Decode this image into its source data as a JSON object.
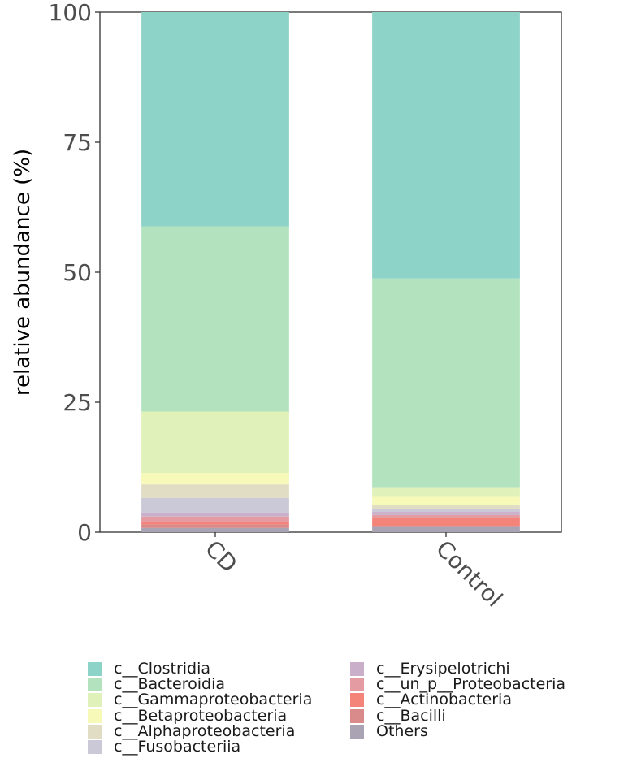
{
  "chart_data": {
    "type": "bar",
    "stacked": true,
    "categories": [
      "CD",
      "Control"
    ],
    "ylabel": "relative abundance (%)",
    "xlabel": "",
    "ylim": [
      0,
      100
    ],
    "yticks": [
      "0",
      "25",
      "50",
      "75",
      "100"
    ],
    "ytick_values": [
      0,
      25,
      50,
      75,
      100
    ],
    "legend_position": "bottom",
    "series": [
      {
        "name": "c__Clostridia",
        "color": "#8DD3C7",
        "values": [
          41.2,
          51.2
        ]
      },
      {
        "name": "c__Bacteroidia",
        "color": "#B3E2BE",
        "values": [
          35.6,
          40.3
        ]
      },
      {
        "name": "c__Gammaproteobacteria",
        "color": "#E0F2B9",
        "values": [
          11.8,
          1.7
        ]
      },
      {
        "name": "c__Betaproteobacteria",
        "color": "#F6F9B8",
        "values": [
          2.2,
          1.6
        ]
      },
      {
        "name": "c__Alphaproteobacteria",
        "color": "#E1DDC4",
        "values": [
          2.6,
          0.8
        ]
      },
      {
        "name": "c__Fusobacteriia",
        "color": "#CBC8D8",
        "values": [
          2.8,
          0.5
        ]
      },
      {
        "name": "c__Erysipelotrichi",
        "color": "#C9AFC9",
        "values": [
          0.8,
          0.6
        ]
      },
      {
        "name": "c__un_p__Proteobacteria",
        "color": "#E49BA1",
        "values": [
          1.0,
          0.5
        ]
      },
      {
        "name": "c__Actinobacteria",
        "color": "#F4837A",
        "values": [
          0.5,
          1.6
        ]
      },
      {
        "name": "c__Bacilli",
        "color": "#D98B8B",
        "values": [
          0.7,
          0.2
        ]
      },
      {
        "name": "Others",
        "color": "#A9A3B3",
        "values": [
          0.8,
          1.0
        ]
      }
    ]
  }
}
